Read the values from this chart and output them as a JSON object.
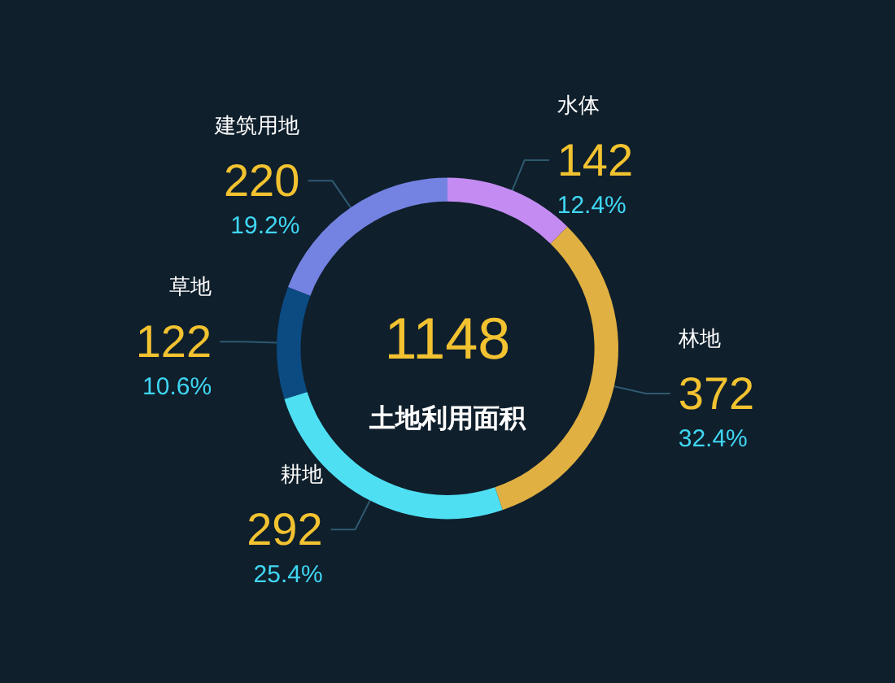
{
  "chart_data": {
    "type": "donut",
    "annotations": [
      "1148",
      {
        "text": "12.4%",
        "x": "水体"
      },
      {
        "text": "32.4%",
        "x": "林地"
      },
      {
        "text": "25.4%",
        "x": "耕地"
      },
      {
        "text": "10.6%",
        "x": "草地"
      },
      {
        "text": "19.2%",
        "x": "建筑用地"
      }
    ],
    "title": "土地利用面积",
    "categories": [
      "水体",
      "林地",
      "耕地",
      "草地",
      "建筑用地"
    ],
    "values": [
      142,
      372,
      292,
      122,
      220
    ],
    "colors": [
      "#c48cf2",
      "#e0b042",
      "#4fdff2",
      "#0b4b82",
      "#7483e2"
    ],
    "data_labels": true,
    "legend": false
  }
}
